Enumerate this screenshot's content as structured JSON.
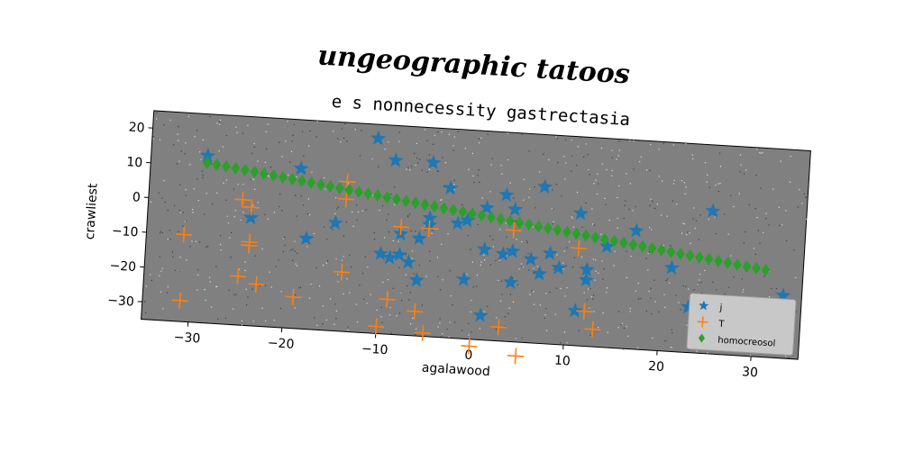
{
  "chart_data": {
    "type": "scatter",
    "suptitle": "ungeographic tatoos",
    "title": "e s nonnecessity gastrectasia",
    "xlabel": "agalawood",
    "ylabel": "crawliest",
    "xlim": [
      -35,
      35
    ],
    "ylim": [
      -35,
      25
    ],
    "xticks": [
      -30,
      -20,
      -10,
      0,
      10,
      20,
      30
    ],
    "yticks": [
      -30,
      -20,
      -10,
      0,
      10,
      20
    ],
    "xtick_labels": [
      "−30",
      "−20",
      "−10",
      "0",
      "10",
      "20",
      "30"
    ],
    "ytick_labels": [
      "−30",
      "−20",
      "−10",
      "0",
      "10",
      "20"
    ],
    "background_color": "#808080",
    "grid": false,
    "legend_position": "lower-right",
    "series": [
      {
        "name": "j",
        "marker": "star",
        "color": "#1f77b4",
        "points": [
          [
            -29,
            13
          ],
          [
            -24,
            -4
          ],
          [
            -18,
            -9
          ],
          [
            -19,
            11
          ],
          [
            -15,
            -4
          ],
          [
            -11,
            21
          ],
          [
            -9,
            15
          ],
          [
            -10,
            -12
          ],
          [
            -9,
            -13
          ],
          [
            -8,
            -12
          ],
          [
            -7,
            -14
          ],
          [
            -8,
            -6
          ],
          [
            -6,
            -7
          ],
          [
            -5,
            -3
          ],
          [
            -5,
            -1
          ],
          [
            -6,
            -19
          ],
          [
            -5,
            15
          ],
          [
            -3,
            8
          ],
          [
            -2,
            -2
          ],
          [
            -1,
            -1
          ],
          [
            -1,
            -18
          ],
          [
            1,
            -9
          ],
          [
            1,
            -28
          ],
          [
            1,
            3
          ],
          [
            3,
            7
          ],
          [
            3,
            -10
          ],
          [
            4,
            3
          ],
          [
            4,
            -9
          ],
          [
            4,
            -18
          ],
          [
            6,
            -11
          ],
          [
            7,
            -15
          ],
          [
            7,
            10
          ],
          [
            8,
            -9
          ],
          [
            9,
            -13
          ],
          [
            11,
            -25
          ],
          [
            11,
            3
          ],
          [
            12,
            -16
          ],
          [
            12,
            -13
          ],
          [
            14,
            -6
          ],
          [
            17,
            -1
          ],
          [
            21,
            -11
          ],
          [
            23,
            -22
          ],
          [
            25,
            6
          ],
          [
            33,
            -17
          ]
        ]
      },
      {
        "name": "T",
        "marker": "plus",
        "color": "#ff7f0e",
        "points": [
          [
            -31,
            -10
          ],
          [
            -31,
            -29
          ],
          [
            -25,
            1
          ],
          [
            -25,
            -21
          ],
          [
            -24,
            -1
          ],
          [
            -24,
            -11
          ],
          [
            -24,
            -12
          ],
          [
            -23,
            -23
          ],
          [
            -19,
            -26
          ],
          [
            -14,
            -18
          ],
          [
            -14,
            8
          ],
          [
            -14,
            3
          ],
          [
            -10,
            -33
          ],
          [
            -9,
            -25
          ],
          [
            -8,
            -4
          ],
          [
            -6,
            -28
          ],
          [
            -5,
            -34
          ],
          [
            -5,
            -4
          ],
          [
            0,
            -37
          ],
          [
            3,
            -31
          ],
          [
            4,
            -3
          ],
          [
            5,
            -39
          ],
          [
            11,
            -7
          ],
          [
            12,
            -25
          ],
          [
            13,
            -30
          ]
        ]
      },
      {
        "name": "homocreosol",
        "marker": "diamond",
        "color": "#2ca02c",
        "x_start": -29,
        "x_end": 31,
        "y_start": 11,
        "y_end": -10,
        "n_points": 60
      }
    ]
  }
}
